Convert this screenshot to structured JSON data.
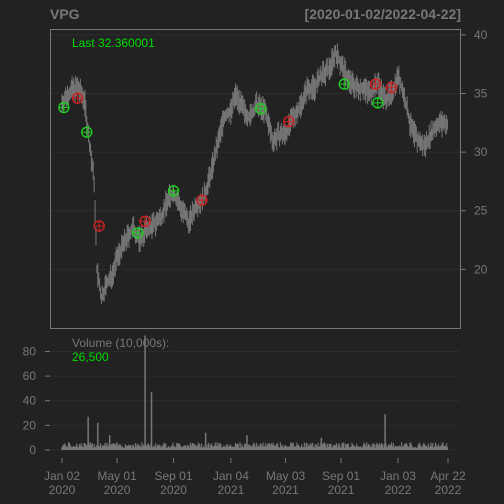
{
  "chart_data": {
    "type": "candlestick",
    "symbol": "VPG",
    "date_range_label": "[2020-01-02/2022-04-22]",
    "last_label": "Last 32.360001",
    "volume_label": "Volume (10,000s):",
    "volume_last_label": "26,500",
    "price_axis": {
      "ylim": [
        15,
        40.5
      ],
      "ticks": [
        20,
        25,
        30,
        35,
        40
      ]
    },
    "volume_axis": {
      "ylim": [
        0,
        95
      ],
      "ticks": [
        0,
        20,
        40,
        60,
        80
      ]
    },
    "x_axis": {
      "start": "2020-01-02",
      "end": "2022-04-22",
      "ticks": [
        {
          "date": "2020-01-02",
          "month": "Jan 02",
          "year": "2020"
        },
        {
          "date": "2020-05-01",
          "month": "May 01",
          "year": "2020"
        },
        {
          "date": "2020-09-01",
          "month": "Sep 01",
          "year": "2020"
        },
        {
          "date": "2021-01-04",
          "month": "Jan 04",
          "year": "2021"
        },
        {
          "date": "2021-05-03",
          "month": "May 03",
          "year": "2021"
        },
        {
          "date": "2021-09-01",
          "month": "Sep 01",
          "year": "2021"
        },
        {
          "date": "2022-01-03",
          "month": "Jan 03",
          "year": "2022"
        },
        {
          "date": "2022-04-22",
          "month": "Apr 22",
          "year": "2022"
        }
      ]
    },
    "price_path": [
      [
        "2020-01-02",
        34.2
      ],
      [
        "2020-01-20",
        35.2
      ],
      [
        "2020-02-05",
        35.5
      ],
      [
        "2020-02-20",
        34.5
      ],
      [
        "2020-03-01",
        31.0
      ],
      [
        "2020-03-12",
        27.5
      ],
      [
        "2020-03-18",
        20.0
      ],
      [
        "2020-03-28",
        17.5
      ],
      [
        "2020-04-05",
        18.5
      ],
      [
        "2020-04-20",
        19.5
      ],
      [
        "2020-05-01",
        21.0
      ],
      [
        "2020-05-20",
        22.5
      ],
      [
        "2020-06-05",
        23.5
      ],
      [
        "2020-06-20",
        22.5
      ],
      [
        "2020-07-05",
        23.5
      ],
      [
        "2020-07-20",
        23.8
      ],
      [
        "2020-08-05",
        24.5
      ],
      [
        "2020-08-20",
        26.0
      ],
      [
        "2020-09-01",
        26.5
      ],
      [
        "2020-09-20",
        25.0
      ],
      [
        "2020-10-05",
        24.0
      ],
      [
        "2020-10-20",
        25.5
      ],
      [
        "2020-11-05",
        26.0
      ],
      [
        "2020-11-20",
        28.0
      ],
      [
        "2020-12-05",
        30.5
      ],
      [
        "2020-12-20",
        33.0
      ],
      [
        "2021-01-04",
        33.5
      ],
      [
        "2021-01-15",
        35.0
      ],
      [
        "2021-02-01",
        33.5
      ],
      [
        "2021-02-15",
        33.0
      ],
      [
        "2021-03-01",
        34.0
      ],
      [
        "2021-03-20",
        33.5
      ],
      [
        "2021-04-05",
        31.0
      ],
      [
        "2021-04-20",
        31.5
      ],
      [
        "2021-05-03",
        31.5
      ],
      [
        "2021-05-20",
        33.0
      ],
      [
        "2021-06-05",
        34.0
      ],
      [
        "2021-06-20",
        35.5
      ],
      [
        "2021-07-05",
        35.5
      ],
      [
        "2021-07-20",
        36.5
      ],
      [
        "2021-08-05",
        37.0
      ],
      [
        "2021-08-20",
        38.5
      ],
      [
        "2021-09-01",
        37.5
      ],
      [
        "2021-09-20",
        36.0
      ],
      [
        "2021-10-05",
        35.5
      ],
      [
        "2021-10-20",
        35.5
      ],
      [
        "2021-11-05",
        35.0
      ],
      [
        "2021-11-20",
        36.0
      ],
      [
        "2021-12-05",
        34.5
      ],
      [
        "2021-12-20",
        35.0
      ],
      [
        "2022-01-03",
        36.5
      ],
      [
        "2022-01-15",
        35.0
      ],
      [
        "2022-02-01",
        32.0
      ],
      [
        "2022-02-15",
        31.0
      ],
      [
        "2022-03-01",
        30.5
      ],
      [
        "2022-03-15",
        31.5
      ],
      [
        "2022-04-01",
        32.5
      ],
      [
        "2022-04-22",
        32.36
      ]
    ],
    "volume_baseline": 3.5,
    "volume_spikes": [
      [
        "2020-02-28",
        27
      ],
      [
        "2020-03-20",
        22
      ],
      [
        "2020-04-15",
        12
      ],
      [
        "2020-07-01",
        93
      ],
      [
        "2020-07-15",
        47
      ],
      [
        "2020-11-10",
        14
      ],
      [
        "2021-02-08",
        12
      ],
      [
        "2021-07-20",
        10
      ],
      [
        "2021-12-06",
        29
      ]
    ],
    "markers": [
      {
        "date": "2020-01-06",
        "price": 33.8,
        "color": "#22cc22"
      },
      {
        "date": "2020-02-05",
        "price": 34.6,
        "color": "#cc2222"
      },
      {
        "date": "2020-02-25",
        "price": 31.7,
        "color": "#22cc22"
      },
      {
        "date": "2020-03-23",
        "price": 23.7,
        "color": "#cc2222"
      },
      {
        "date": "2020-06-15",
        "price": 23.1,
        "color": "#22cc22"
      },
      {
        "date": "2020-07-01",
        "price": 24.1,
        "color": "#cc2222"
      },
      {
        "date": "2020-09-01",
        "price": 26.7,
        "color": "#22cc22"
      },
      {
        "date": "2020-11-02",
        "price": 25.9,
        "color": "#cc2222"
      },
      {
        "date": "2021-03-10",
        "price": 33.7,
        "color": "#22cc22"
      },
      {
        "date": "2021-05-10",
        "price": 32.6,
        "color": "#cc2222"
      },
      {
        "date": "2021-09-08",
        "price": 35.8,
        "color": "#22cc22"
      },
      {
        "date": "2021-11-15",
        "price": 35.8,
        "color": "#cc2222"
      },
      {
        "date": "2021-11-20",
        "price": 34.2,
        "color": "#22cc22"
      },
      {
        "date": "2021-12-20",
        "price": 35.5,
        "color": "#cc2222"
      }
    ],
    "colors": {
      "background": "#222222",
      "panel": "#222222",
      "frame": "#777777",
      "grid": "#2c2c2c",
      "candles": "#777777",
      "axis_text": "#777777",
      "title": "#777777",
      "accent": "#00dd00"
    }
  }
}
